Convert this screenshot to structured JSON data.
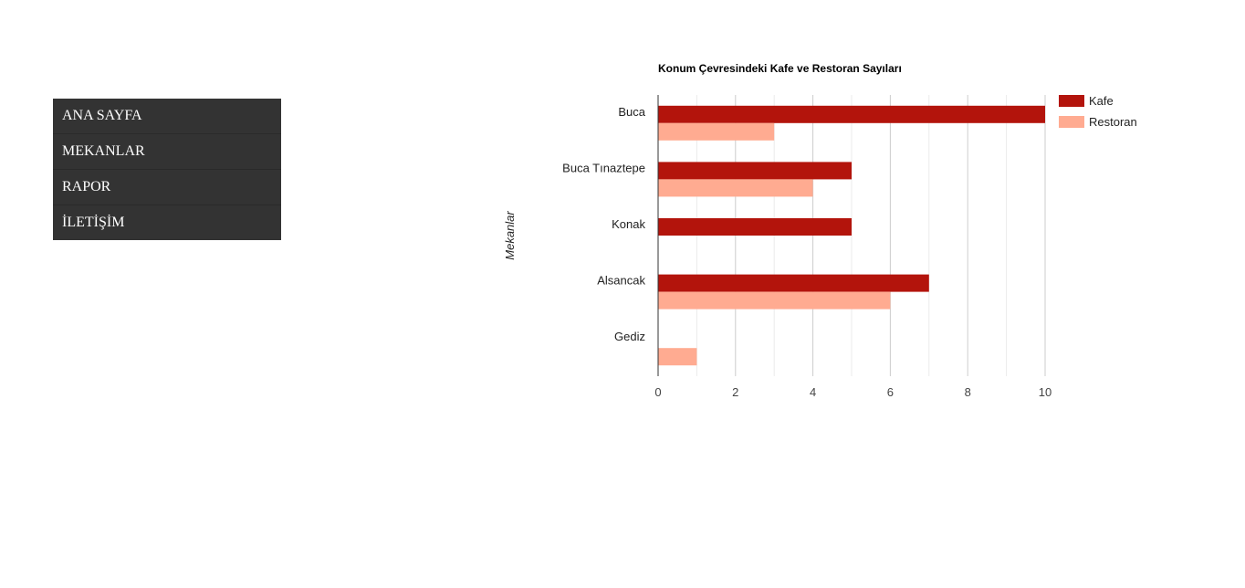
{
  "nav": {
    "items": [
      {
        "label": "ANA SAYFA"
      },
      {
        "label": "MEKANLAR"
      },
      {
        "label": "RAPOR"
      },
      {
        "label": "İLETİŞİM"
      }
    ]
  },
  "chart_data": {
    "type": "bar",
    "orientation": "horizontal",
    "title": "Konum Çevresindeki Kafe ve Restoran Sayıları",
    "ylabel": "Mekanlar",
    "xlabel": "",
    "categories": [
      "Buca",
      "Buca Tınaztepe",
      "Konak",
      "Alsancak",
      "Gediz"
    ],
    "series": [
      {
        "name": "Kafe",
        "color": "#b3140c",
        "values": [
          10,
          5,
          5,
          7,
          0
        ]
      },
      {
        "name": "Restoran",
        "color": "#ffab91",
        "values": [
          3,
          4,
          0,
          6,
          1
        ]
      }
    ],
    "xlim": [
      0,
      10
    ],
    "x_ticks": [
      0,
      2,
      4,
      6,
      8,
      10
    ],
    "grid": true,
    "legend": "right"
  }
}
